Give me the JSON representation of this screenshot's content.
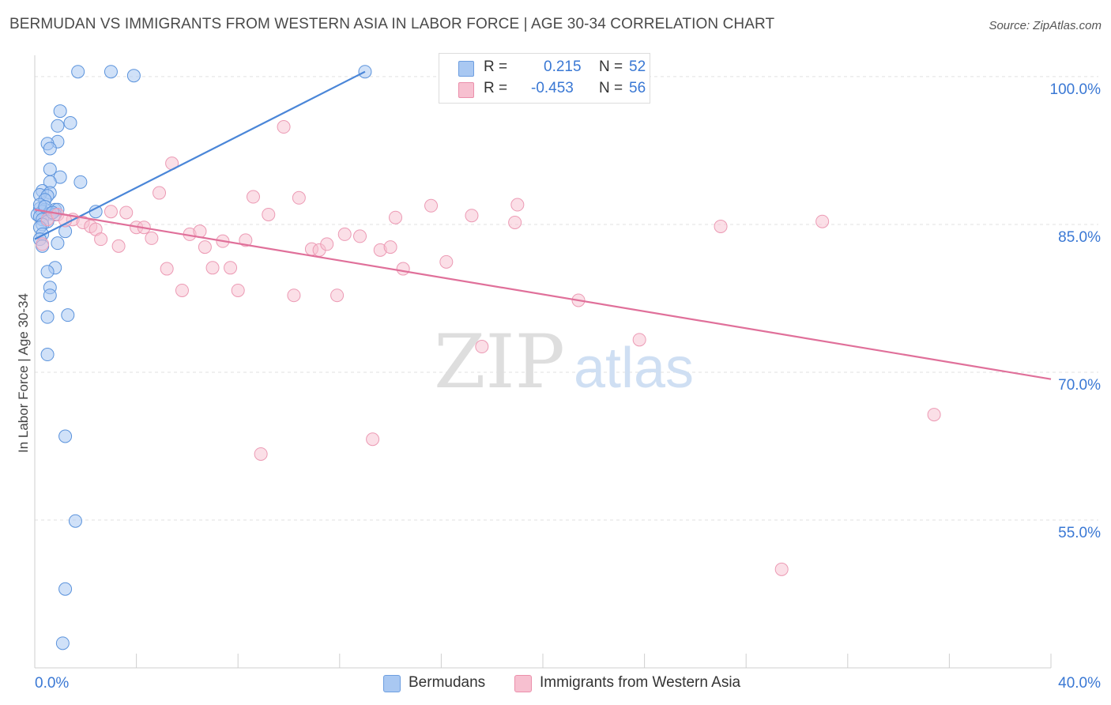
{
  "title": "BERMUDAN VS IMMIGRANTS FROM WESTERN ASIA IN LABOR FORCE | AGE 30-34 CORRELATION CHART",
  "source": "Source: ZipAtlas.com",
  "watermark": {
    "zip": "ZIP",
    "atlas": "atlas"
  },
  "stats": [
    {
      "r_label": "R =",
      "r_value": "0.215",
      "n_label": "N =",
      "n_value": "52",
      "color": "#a9c8f2",
      "border": "#6d9ee0"
    },
    {
      "r_label": "R =",
      "r_value": "-0.453",
      "n_label": "N =",
      "n_value": "56",
      "color": "#f7c0d0",
      "border": "#eb8fab"
    }
  ],
  "legend": [
    {
      "label": "Bermudans",
      "color": "#a9c8f2",
      "border": "#6d9ee0"
    },
    {
      "label": "Immigrants from Western Asia",
      "color": "#f7c0d0",
      "border": "#eb8fab"
    }
  ],
  "chart_data": {
    "type": "scatter",
    "xlabel": "",
    "ylabel": "In Labor Force | Age 30-34",
    "xlim": [
      0,
      40
    ],
    "ylim": [
      40,
      102
    ],
    "x_tick_labels": [
      {
        "value": 0,
        "label": "0.0%"
      },
      {
        "value": 40,
        "label": "40.0%"
      }
    ],
    "y_tick_labels": [
      {
        "value": 100,
        "label": "100.0%"
      },
      {
        "value": 85,
        "label": "85.0%"
      },
      {
        "value": 70,
        "label": "70.0%"
      },
      {
        "value": 55,
        "label": "55.0%"
      }
    ],
    "grid": true,
    "series": [
      {
        "name": "Bermudans",
        "color": "#4a86d8",
        "fill": "#a9c8f2",
        "trend": {
          "x": [
            0.0,
            13.0
          ],
          "y": [
            83.5,
            100.5
          ]
        },
        "points": [
          [
            1.7,
            100.5
          ],
          [
            3.0,
            100.5
          ],
          [
            3.9,
            100.1
          ],
          [
            13.0,
            100.5
          ],
          [
            1.0,
            96.5
          ],
          [
            1.4,
            95.3
          ],
          [
            0.9,
            95.0
          ],
          [
            0.9,
            93.4
          ],
          [
            0.5,
            93.2
          ],
          [
            0.6,
            92.7
          ],
          [
            0.6,
            90.6
          ],
          [
            1.0,
            89.8
          ],
          [
            0.6,
            89.3
          ],
          [
            1.8,
            89.3
          ],
          [
            0.3,
            88.4
          ],
          [
            0.6,
            88.2
          ],
          [
            0.2,
            88.0
          ],
          [
            0.5,
            87.9
          ],
          [
            0.4,
            87.5
          ],
          [
            0.2,
            86.6
          ],
          [
            0.4,
            86.5
          ],
          [
            0.8,
            86.5
          ],
          [
            0.9,
            86.5
          ],
          [
            2.4,
            86.3
          ],
          [
            0.3,
            86.3
          ],
          [
            0.6,
            86.1
          ],
          [
            0.8,
            86.0
          ],
          [
            0.1,
            86.0
          ],
          [
            0.2,
            85.8
          ],
          [
            0.3,
            85.5
          ],
          [
            0.5,
            85.3
          ],
          [
            0.3,
            85.0
          ],
          [
            0.2,
            84.7
          ],
          [
            1.2,
            84.3
          ],
          [
            0.3,
            84.0
          ],
          [
            0.2,
            83.5
          ],
          [
            0.9,
            83.1
          ],
          [
            0.3,
            82.8
          ],
          [
            0.8,
            80.6
          ],
          [
            0.5,
            80.2
          ],
          [
            0.6,
            78.6
          ],
          [
            0.6,
            77.8
          ],
          [
            0.5,
            75.6
          ],
          [
            1.3,
            75.8
          ],
          [
            0.5,
            71.8
          ],
          [
            1.2,
            63.5
          ],
          [
            1.6,
            54.9
          ],
          [
            1.2,
            48.0
          ],
          [
            1.1,
            42.5
          ],
          [
            0.2,
            87.0
          ],
          [
            0.4,
            86.8
          ],
          [
            0.7,
            86.2
          ]
        ]
      },
      {
        "name": "Immigrants from Western Asia",
        "color": "#e0709a",
        "fill": "#f7c0d0",
        "trend": {
          "x": [
            0.0,
            40.0
          ],
          "y": [
            86.5,
            69.3
          ]
        },
        "points": [
          [
            0.3,
            83.0
          ],
          [
            0.5,
            85.5
          ],
          [
            0.9,
            86.0
          ],
          [
            1.5,
            85.5
          ],
          [
            1.9,
            85.2
          ],
          [
            2.2,
            84.8
          ],
          [
            2.4,
            84.5
          ],
          [
            2.6,
            83.5
          ],
          [
            3.0,
            86.3
          ],
          [
            3.3,
            82.8
          ],
          [
            3.6,
            86.2
          ],
          [
            4.0,
            84.7
          ],
          [
            4.3,
            84.7
          ],
          [
            4.6,
            83.6
          ],
          [
            4.9,
            88.2
          ],
          [
            5.2,
            80.5
          ],
          [
            5.4,
            91.2
          ],
          [
            5.8,
            78.3
          ],
          [
            6.1,
            84.0
          ],
          [
            6.5,
            84.3
          ],
          [
            6.7,
            82.7
          ],
          [
            7.0,
            80.6
          ],
          [
            7.4,
            83.3
          ],
          [
            7.7,
            80.6
          ],
          [
            8.0,
            78.3
          ],
          [
            8.3,
            83.4
          ],
          [
            8.6,
            87.8
          ],
          [
            8.9,
            61.7
          ],
          [
            9.2,
            86.0
          ],
          [
            9.8,
            94.9
          ],
          [
            10.2,
            77.8
          ],
          [
            10.4,
            87.7
          ],
          [
            10.9,
            82.5
          ],
          [
            11.2,
            82.4
          ],
          [
            11.5,
            83.0
          ],
          [
            11.9,
            77.8
          ],
          [
            12.2,
            84.0
          ],
          [
            12.8,
            83.8
          ],
          [
            13.3,
            63.2
          ],
          [
            13.6,
            82.4
          ],
          [
            14.0,
            82.7
          ],
          [
            14.2,
            85.7
          ],
          [
            14.5,
            80.5
          ],
          [
            15.6,
            86.9
          ],
          [
            16.2,
            81.2
          ],
          [
            17.2,
            85.9
          ],
          [
            17.6,
            72.6
          ],
          [
            18.9,
            85.2
          ],
          [
            19.0,
            87.0
          ],
          [
            21.4,
            77.3
          ],
          [
            23.8,
            73.3
          ],
          [
            27.0,
            84.8
          ],
          [
            29.4,
            50.0
          ],
          [
            31.0,
            85.3
          ],
          [
            35.4,
            65.7
          ],
          [
            1.2,
            85.4
          ]
        ]
      }
    ]
  }
}
